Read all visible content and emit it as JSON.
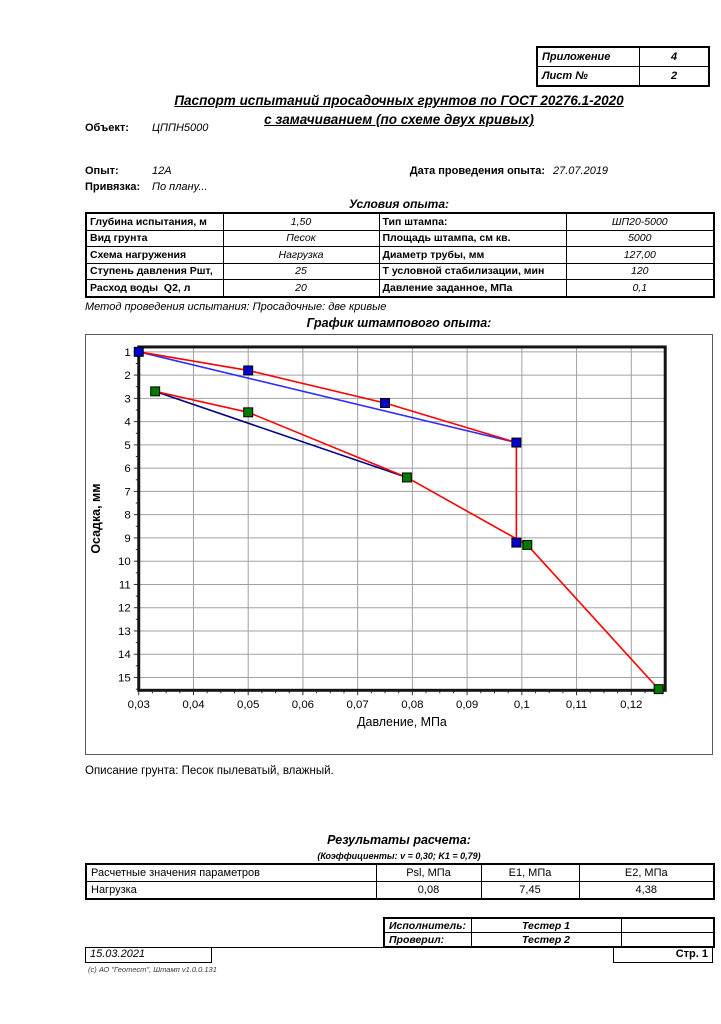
{
  "page": {
    "appendix_table": {
      "rows": [
        {
          "label": "Приложение",
          "value": "4"
        },
        {
          "label": "Лист №",
          "value": "2"
        }
      ]
    },
    "title_line1": "Паспорт испытаний просадочных грунтов по ГОСТ 20276.1-2020",
    "title_line2": "с замачиванием (по схеме двух кривых)",
    "object_label": "Объект:",
    "object_value": "ЦППН5000",
    "experiment_label": "Опыт:",
    "experiment_value": "12А",
    "date_label": "Дата проведения опыта:",
    "date_value": "27.07.2019",
    "binding_label": "Привязка:",
    "binding_value": "По плану...",
    "conditions_heading": "Условия опыта:",
    "conditions_rows": [
      {
        "label1": "Глубина испытания, м",
        "value1": "1,50",
        "label2": "Тип штампа:",
        "value2": "ШП20-5000"
      },
      {
        "label1": "Вид грунта",
        "value1": "Песок",
        "label2": "Площадь штампа, см кв.",
        "value2": "5000"
      },
      {
        "label1": "Схема нагружения",
        "value1": "Нагрузка",
        "label2": "Диаметр трубы, мм",
        "value2": "127,00"
      },
      {
        "label1": "Ступень давления Ршт,",
        "value1": "25",
        "label2": "Т условной стабилизации, мин",
        "value2": "120"
      },
      {
        "label1": "Расход воды  Q2, л",
        "value1": "20",
        "label2": "Давление заданное, МПа",
        "value2": "0,1"
      }
    ],
    "method_line": "Метод проведения испытания: Просадочные: две кривые",
    "chart_heading": "График штампового опыта:",
    "soil_description": "Описание грунта: Песок пылеватый, влажный.",
    "results_heading": "Результаты расчета:",
    "coefficients_line": "(Коэффициенты: v = 0,30; K1 = 0,79)",
    "results_headers": [
      "Расчетные значения параметров",
      "Psl, МПа",
      "E1, МПа",
      "E2, МПа"
    ],
    "results_rows": [
      [
        "Нагрузка",
        "0,08",
        "7,45",
        "4,38"
      ]
    ],
    "signature_rows": [
      {
        "label": "Исполнитель:",
        "value": "Тестер 1"
      },
      {
        "label": "Проверил:",
        "value": "Тестер 2"
      }
    ],
    "footer_date": "15.03.2021",
    "footer_page": "Стр. 1",
    "footer_copyright": "(с) АО \"Геотест\", Штамп v1.0.0.131"
  },
  "chart_data": {
    "type": "line",
    "title": "График штампового опыта:",
    "xlabel": "Давление, МПа",
    "ylabel": "Осадка, мм",
    "xlim": [
      0.03,
      0.1262
    ],
    "ylim": [
      0.79,
      15.55
    ],
    "grid": true,
    "legend": "none",
    "x_ticks": [
      0.03,
      0.04,
      0.05,
      0.06,
      0.07,
      0.08,
      0.09,
      0.1,
      0.11,
      0.12
    ],
    "x_tick_labels": [
      "0,03",
      "0,04",
      "0,05",
      "0,06",
      "0,07",
      "0,08",
      "0,09",
      "0,1",
      "0,11",
      "0,12"
    ],
    "y_ticks": [
      1,
      2,
      3,
      4,
      5,
      6,
      7,
      8,
      9,
      10,
      11,
      12,
      13,
      14,
      15
    ],
    "series": [
      {
        "name": "secant-modulus-e1",
        "kind": "secant",
        "line_color": "#2d2dff",
        "points": [
          [
            0.03,
            1.0
          ],
          [
            0.099,
            4.9
          ]
        ]
      },
      {
        "name": "secant-modulus-e2",
        "kind": "secant",
        "line_color": "#00008b",
        "points": [
          [
            0.033,
            2.7
          ],
          [
            0.079,
            6.4
          ]
        ]
      },
      {
        "name": "load-curve-natural",
        "kind": "curve",
        "line_color": "#ff0000",
        "marker_color": "#0000cd",
        "points": [
          [
            0.03,
            1.0
          ],
          [
            0.05,
            1.8
          ],
          [
            0.075,
            3.2
          ],
          [
            0.099,
            4.9
          ],
          [
            0.099,
            9.2
          ]
        ]
      },
      {
        "name": "load-curve-wetted",
        "kind": "curve",
        "line_color": "#ff0000",
        "marker_color": "#007a00",
        "points": [
          [
            0.033,
            2.7
          ],
          [
            0.05,
            3.6
          ],
          [
            0.079,
            6.4
          ],
          [
            0.101,
            9.3
          ],
          [
            0.125,
            15.5
          ]
        ]
      }
    ]
  }
}
